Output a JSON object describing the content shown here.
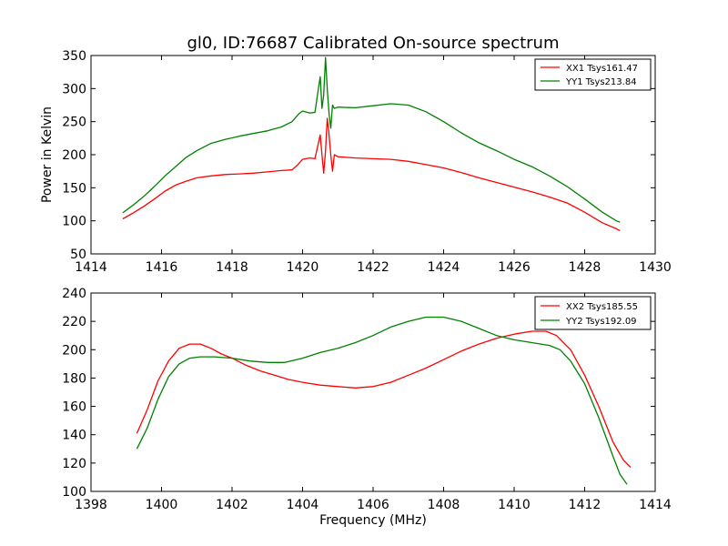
{
  "chart_data": [
    {
      "type": "line",
      "title": "gl0, ID:76687 Calibrated On-source spectrum",
      "xlabel": "",
      "ylabel": "Power in Kelvin",
      "xlim": [
        1414,
        1430
      ],
      "ylim": [
        50,
        350
      ],
      "xticks": [
        "1414",
        "1416",
        "1418",
        "1420",
        "1422",
        "1424",
        "1426",
        "1428",
        "1430"
      ],
      "yticks": [
        "50",
        "100",
        "150",
        "200",
        "250",
        "300",
        "350"
      ],
      "grid": false,
      "legend_position": "top-right",
      "series": [
        {
          "name": "XX1 Tsys161.47",
          "color": "#ff0000",
          "points": [
            [
              1414.9,
              103
            ],
            [
              1415.2,
              112
            ],
            [
              1415.5,
              122
            ],
            [
              1415.8,
              133
            ],
            [
              1416.1,
              145
            ],
            [
              1416.4,
              154
            ],
            [
              1416.7,
              160
            ],
            [
              1417.0,
              165
            ],
            [
              1417.4,
              168
            ],
            [
              1417.8,
              170
            ],
            [
              1418.2,
              171
            ],
            [
              1418.6,
              172
            ],
            [
              1419.0,
              174
            ],
            [
              1419.4,
              176
            ],
            [
              1419.7,
              177
            ],
            [
              1419.85,
              184
            ],
            [
              1420.0,
              193
            ],
            [
              1420.2,
              195
            ],
            [
              1420.35,
              194
            ],
            [
              1420.5,
              230
            ],
            [
              1420.55,
              200
            ],
            [
              1420.6,
              172
            ],
            [
              1420.65,
              205
            ],
            [
              1420.7,
              255
            ],
            [
              1420.75,
              230
            ],
            [
              1420.8,
              200
            ],
            [
              1420.85,
              175
            ],
            [
              1420.9,
              200
            ],
            [
              1421.0,
              197
            ],
            [
              1421.5,
              195
            ],
            [
              1422.0,
              194
            ],
            [
              1422.5,
              193
            ],
            [
              1423.0,
              190
            ],
            [
              1423.5,
              185
            ],
            [
              1424.0,
              180
            ],
            [
              1424.5,
              173
            ],
            [
              1425.0,
              165
            ],
            [
              1425.5,
              158
            ],
            [
              1426.0,
              151
            ],
            [
              1426.5,
              144
            ],
            [
              1427.0,
              136
            ],
            [
              1427.5,
              127
            ],
            [
              1428.0,
              113
            ],
            [
              1428.5,
              97
            ],
            [
              1428.9,
              88
            ],
            [
              1429.0,
              85
            ]
          ]
        },
        {
          "name": "YY1 Tsys213.84",
          "color": "#008000",
          "points": [
            [
              1414.9,
              112
            ],
            [
              1415.2,
              124
            ],
            [
              1415.5,
              137
            ],
            [
              1415.8,
              152
            ],
            [
              1416.1,
              168
            ],
            [
              1416.4,
              182
            ],
            [
              1416.7,
              196
            ],
            [
              1417.0,
              206
            ],
            [
              1417.4,
              217
            ],
            [
              1417.8,
              223
            ],
            [
              1418.2,
              228
            ],
            [
              1418.6,
              232
            ],
            [
              1419.0,
              236
            ],
            [
              1419.4,
              242
            ],
            [
              1419.7,
              250
            ],
            [
              1419.9,
              262
            ],
            [
              1420.0,
              266
            ],
            [
              1420.2,
              263
            ],
            [
              1420.35,
              264
            ],
            [
              1420.45,
              300
            ],
            [
              1420.5,
              318
            ],
            [
              1420.55,
              270
            ],
            [
              1420.6,
              290
            ],
            [
              1420.65,
              347
            ],
            [
              1420.7,
              300
            ],
            [
              1420.75,
              262
            ],
            [
              1420.8,
              240
            ],
            [
              1420.85,
              275
            ],
            [
              1420.9,
              270
            ],
            [
              1421.0,
              272
            ],
            [
              1421.5,
              271
            ],
            [
              1422.0,
              274
            ],
            [
              1422.5,
              277
            ],
            [
              1423.0,
              275
            ],
            [
              1423.5,
              265
            ],
            [
              1424.0,
              250
            ],
            [
              1424.5,
              233
            ],
            [
              1425.0,
              218
            ],
            [
              1425.5,
              206
            ],
            [
              1426.0,
              193
            ],
            [
              1426.5,
              182
            ],
            [
              1427.0,
              168
            ],
            [
              1427.5,
              152
            ],
            [
              1428.0,
              133
            ],
            [
              1428.5,
              113
            ],
            [
              1428.9,
              100
            ],
            [
              1429.0,
              98
            ]
          ]
        }
      ]
    },
    {
      "type": "line",
      "title": "",
      "xlabel": "Frequency (MHz)",
      "ylabel": "",
      "xlim": [
        1398,
        1414
      ],
      "ylim": [
        100,
        240
      ],
      "xticks": [
        "1398",
        "1400",
        "1402",
        "1404",
        "1406",
        "1408",
        "1410",
        "1412",
        "1414"
      ],
      "yticks": [
        "100",
        "120",
        "140",
        "160",
        "180",
        "200",
        "220",
        "240"
      ],
      "grid": false,
      "legend_position": "top-right",
      "series": [
        {
          "name": "XX2 Tsys185.55",
          "color": "#ff0000",
          "points": [
            [
              1399.3,
              141
            ],
            [
              1399.6,
              158
            ],
            [
              1399.9,
              178
            ],
            [
              1400.2,
              192
            ],
            [
              1400.5,
              201
            ],
            [
              1400.8,
              204
            ],
            [
              1401.1,
              204
            ],
            [
              1401.4,
              201
            ],
            [
              1401.7,
              197
            ],
            [
              1402.0,
              194
            ],
            [
              1402.4,
              189
            ],
            [
              1402.8,
              185
            ],
            [
              1403.2,
              182
            ],
            [
              1403.6,
              179
            ],
            [
              1404.0,
              177
            ],
            [
              1404.5,
              175
            ],
            [
              1405.0,
              174
            ],
            [
              1405.5,
              173
            ],
            [
              1406.0,
              174
            ],
            [
              1406.5,
              177
            ],
            [
              1407.0,
              182
            ],
            [
              1407.5,
              187
            ],
            [
              1408.0,
              193
            ],
            [
              1408.5,
              199
            ],
            [
              1409.0,
              204
            ],
            [
              1409.5,
              208
            ],
            [
              1410.0,
              211
            ],
            [
              1410.5,
              213
            ],
            [
              1410.9,
              213
            ],
            [
              1411.2,
              210
            ],
            [
              1411.6,
              200
            ],
            [
              1412.0,
              182
            ],
            [
              1412.4,
              160
            ],
            [
              1412.8,
              135
            ],
            [
              1413.1,
              122
            ],
            [
              1413.3,
              117
            ]
          ]
        },
        {
          "name": "YY2 Tsys192.09",
          "color": "#008000",
          "points": [
            [
              1399.3,
              130
            ],
            [
              1399.6,
              145
            ],
            [
              1399.9,
              165
            ],
            [
              1400.2,
              181
            ],
            [
              1400.5,
              190
            ],
            [
              1400.8,
              194
            ],
            [
              1401.1,
              195
            ],
            [
              1401.5,
              195
            ],
            [
              1402.0,
              194
            ],
            [
              1402.5,
              192
            ],
            [
              1403.0,
              191
            ],
            [
              1403.5,
              191
            ],
            [
              1404.0,
              194
            ],
            [
              1404.5,
              198
            ],
            [
              1405.0,
              201
            ],
            [
              1405.5,
              205
            ],
            [
              1406.0,
              210
            ],
            [
              1406.5,
              216
            ],
            [
              1407.0,
              220
            ],
            [
              1407.5,
              223
            ],
            [
              1408.0,
              223
            ],
            [
              1408.5,
              220
            ],
            [
              1409.0,
              215
            ],
            [
              1409.5,
              210
            ],
            [
              1410.0,
              207
            ],
            [
              1410.5,
              205
            ],
            [
              1411.0,
              203
            ],
            [
              1411.3,
              200
            ],
            [
              1411.6,
              192
            ],
            [
              1412.0,
              176
            ],
            [
              1412.4,
              152
            ],
            [
              1412.8,
              125
            ],
            [
              1413.0,
              112
            ],
            [
              1413.2,
              105
            ]
          ]
        }
      ]
    }
  ]
}
